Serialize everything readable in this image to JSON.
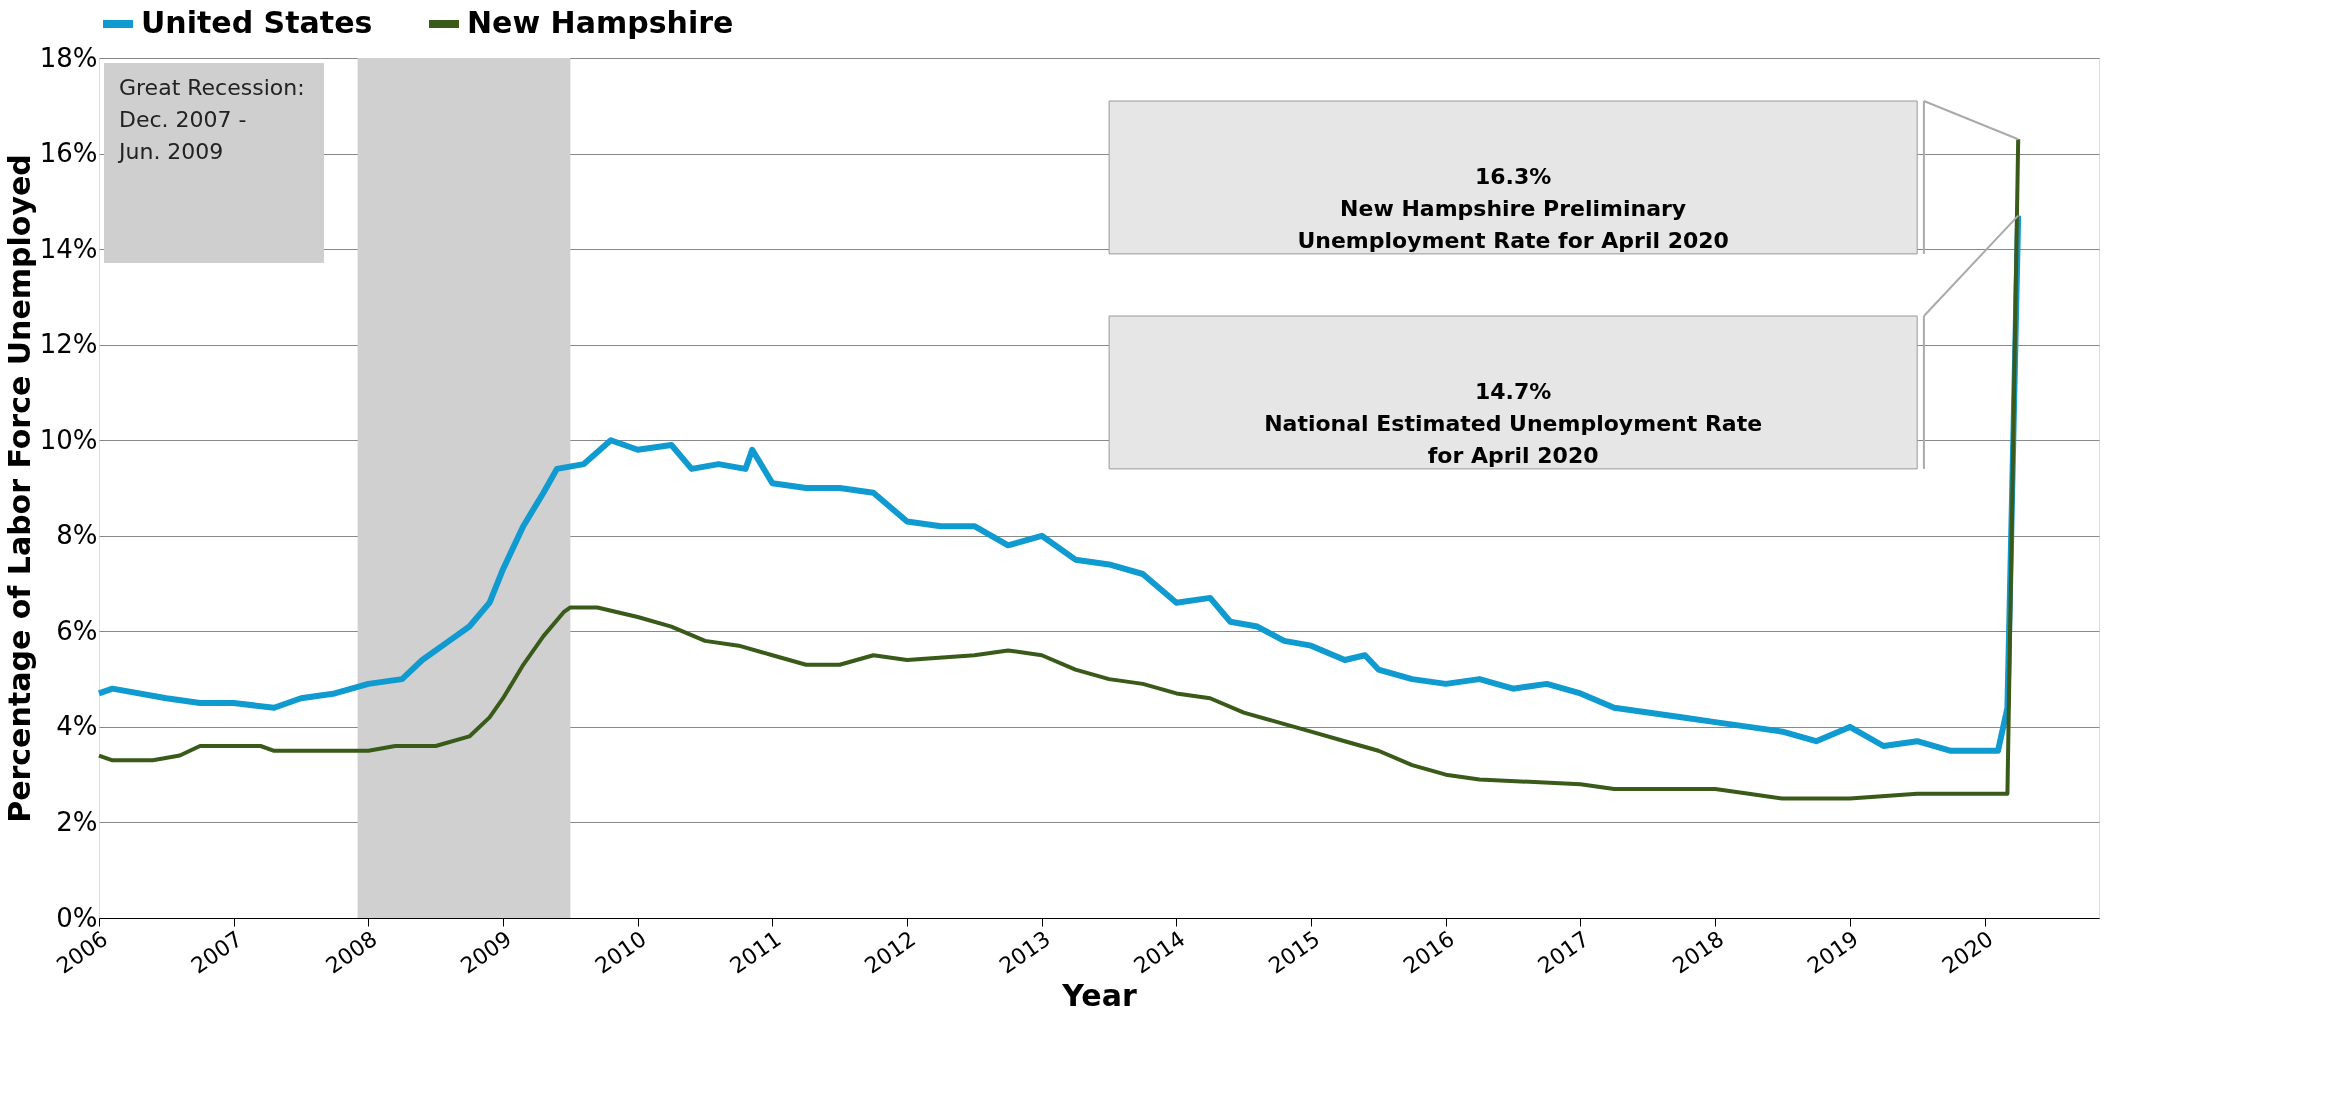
{
  "chart_data": {
    "type": "line",
    "xlabel": "Year",
    "ylabel": "Percentage of Labor Force Unemployed",
    "xlim": [
      2006,
      2020.85
    ],
    "xticks": [
      2006,
      2007,
      2008,
      2009,
      2010,
      2011,
      2012,
      2013,
      2014,
      2015,
      2016,
      2017,
      2018,
      2019,
      2020
    ],
    "ylim": [
      0,
      18
    ],
    "yticks": [
      {
        "value": 0,
        "label": "0%"
      },
      {
        "value": 2,
        "label": "2%"
      },
      {
        "value": 4,
        "label": "4%"
      },
      {
        "value": 6,
        "label": "6%"
      },
      {
        "value": 8,
        "label": "8%"
      },
      {
        "value": 10,
        "label": "10%"
      },
      {
        "value": 12,
        "label": "12%"
      },
      {
        "value": 14,
        "label": "14%"
      },
      {
        "value": 16,
        "label": "16%"
      },
      {
        "value": 18,
        "label": "18%"
      }
    ],
    "grid": "y",
    "legend": "top",
    "marker": "none",
    "line_style": "solid",
    "series": [
      {
        "name": "United States",
        "color": "#0f9ad0",
        "x": [
          2006.0,
          2006.1,
          2006.5,
          2006.75,
          2007.0,
          2007.3,
          2007.5,
          2007.75,
          2008.0,
          2008.25,
          2008.4,
          2008.6,
          2008.75,
          2008.9,
          2009.0,
          2009.15,
          2009.3,
          2009.4,
          2009.6,
          2009.8,
          2010.0,
          2010.25,
          2010.4,
          2010.6,
          2010.8,
          2010.85,
          2011.0,
          2011.25,
          2011.5,
          2011.75,
          2012.0,
          2012.25,
          2012.5,
          2012.75,
          2013.0,
          2013.25,
          2013.5,
          2013.75,
          2014.0,
          2014.25,
          2014.4,
          2014.6,
          2014.8,
          2015.0,
          2015.25,
          2015.4,
          2015.5,
          2015.75,
          2016.0,
          2016.25,
          2016.5,
          2016.75,
          2017.0,
          2017.25,
          2017.5,
          2017.75,
          2018.0,
          2018.25,
          2018.5,
          2018.75,
          2019.0,
          2019.25,
          2019.5,
          2019.75,
          2020.0,
          2020.1,
          2020.17,
          2020.25
        ],
        "values": [
          4.7,
          4.8,
          4.6,
          4.5,
          4.5,
          4.4,
          4.6,
          4.7,
          4.9,
          5.0,
          5.4,
          5.8,
          6.1,
          6.6,
          7.3,
          8.2,
          8.9,
          9.4,
          9.5,
          10.0,
          9.8,
          9.9,
          9.4,
          9.5,
          9.4,
          9.8,
          9.1,
          9.0,
          9.0,
          8.9,
          8.3,
          8.2,
          8.2,
          7.8,
          8.0,
          7.5,
          7.4,
          7.2,
          6.6,
          6.7,
          6.2,
          6.1,
          5.8,
          5.7,
          5.4,
          5.5,
          5.2,
          5.0,
          4.9,
          5.0,
          4.8,
          4.9,
          4.7,
          4.4,
          4.3,
          4.2,
          4.1,
          4.0,
          3.9,
          3.7,
          4.0,
          3.6,
          3.7,
          3.5,
          3.5,
          3.5,
          4.4,
          14.7
        ]
      },
      {
        "name": "New Hampshire",
        "color": "#3a5a1a",
        "x": [
          2006.0,
          2006.1,
          2006.4,
          2006.6,
          2006.75,
          2007.0,
          2007.2,
          2007.3,
          2008.0,
          2008.2,
          2008.5,
          2008.75,
          2008.9,
          2009.0,
          2009.15,
          2009.3,
          2009.45,
          2009.5,
          2009.7,
          2010.0,
          2010.25,
          2010.5,
          2010.75,
          2011.0,
          2011.25,
          2011.5,
          2011.75,
          2012.0,
          2012.5,
          2012.75,
          2013.0,
          2013.25,
          2013.5,
          2013.75,
          2014.0,
          2014.25,
          2014.5,
          2014.75,
          2015.0,
          2015.25,
          2015.5,
          2015.75,
          2016.0,
          2016.25,
          2017.0,
          2017.25,
          2018.0,
          2018.25,
          2018.5,
          2019.0,
          2019.5,
          2020.0,
          2020.17,
          2020.25
        ],
        "values": [
          3.4,
          3.3,
          3.3,
          3.4,
          3.6,
          3.6,
          3.6,
          3.5,
          3.5,
          3.6,
          3.6,
          3.8,
          4.2,
          4.6,
          5.3,
          5.9,
          6.4,
          6.5,
          6.5,
          6.3,
          6.1,
          5.8,
          5.7,
          5.5,
          5.3,
          5.3,
          5.5,
          5.4,
          5.5,
          5.6,
          5.5,
          5.2,
          5.0,
          4.9,
          4.7,
          4.6,
          4.3,
          4.1,
          3.9,
          3.7,
          3.5,
          3.2,
          3.0,
          2.9,
          2.8,
          2.7,
          2.7,
          2.6,
          2.5,
          2.5,
          2.6,
          2.6,
          2.6,
          16.3
        ]
      }
    ],
    "bands": [
      {
        "axis": "x",
        "from": 2007.92,
        "to": 2009.5,
        "label": "Great Recession:\nDec. 2007 -\nJun. 2009",
        "color": "#d0d0d0"
      }
    ],
    "annotations": [
      "16.3%\nNew Hampshire Preliminary\nUnemployment Rate for April 2020",
      "14.7%\nNational Estimated Unemployment Rate\nfor April 2020"
    ]
  }
}
